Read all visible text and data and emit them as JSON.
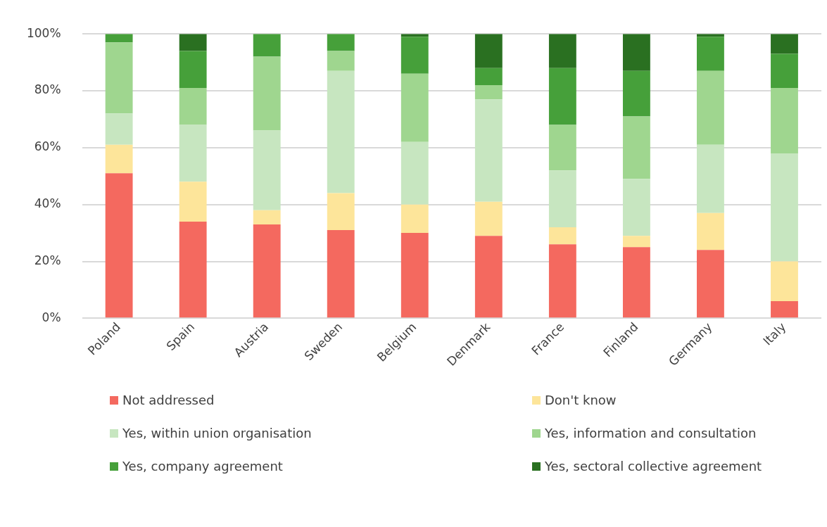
{
  "chart_data": {
    "type": "bar",
    "stacked": true,
    "categories": [
      "Poland",
      "Spain",
      "Austria",
      "Sweden",
      "Belgium",
      "Denmark",
      "France",
      "Finland",
      "Germany",
      "Italy"
    ],
    "ylim": [
      0,
      100
    ],
    "yticks": [
      {
        "value": 0,
        "label": "0%"
      },
      {
        "value": 20,
        "label": "20%"
      },
      {
        "value": 40,
        "label": "40%"
      },
      {
        "value": 60,
        "label": "60%"
      },
      {
        "value": 80,
        "label": "80%"
      },
      {
        "value": 100,
        "label": "100%"
      }
    ],
    "grid": "y",
    "legend": "bottom",
    "series": [
      {
        "name": "Not addressed",
        "color": "#f4695f",
        "values": [
          51,
          34,
          33,
          31,
          30,
          29,
          26,
          25,
          24,
          6
        ]
      },
      {
        "name": "Don't know",
        "color": "#fde59a",
        "values": [
          10,
          14,
          5,
          13,
          10,
          12,
          6,
          4,
          13,
          14
        ]
      },
      {
        "name": "Yes, within union organisation",
        "color": "#c7e6c0",
        "values": [
          11,
          20,
          28,
          43,
          22,
          36,
          20,
          20,
          24,
          38
        ]
      },
      {
        "name": "Yes, information and consultation",
        "color": "#9fd68f",
        "values": [
          25,
          13,
          26,
          7,
          24,
          5,
          16,
          22,
          26,
          23
        ]
      },
      {
        "name": "Yes, company agreement",
        "color": "#46a03a",
        "values": [
          3,
          13,
          8,
          6,
          13,
          6,
          20,
          16,
          12,
          12
        ]
      },
      {
        "name": "Yes, sectoral collective agreement",
        "color": "#2a7021",
        "values": [
          0,
          6,
          0,
          0,
          1,
          12,
          12,
          13,
          1,
          7
        ]
      }
    ]
  }
}
